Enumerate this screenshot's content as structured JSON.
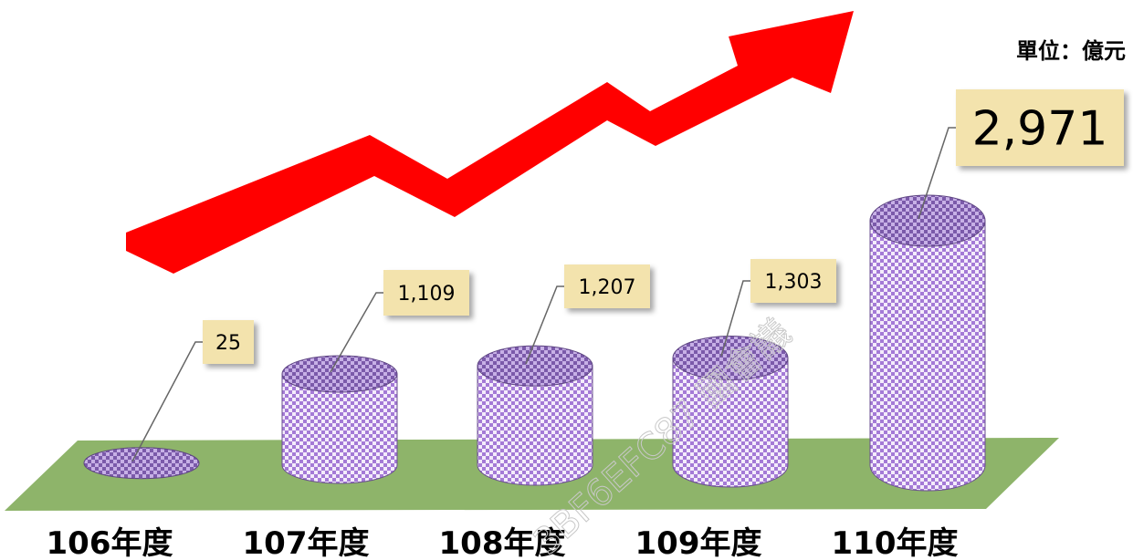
{
  "chart_data": {
    "type": "bar",
    "style": "3d-cylinder",
    "unit_label": "單位：億元",
    "categories": [
      "106年度",
      "107年度",
      "108年度",
      "109年度",
      "110年度"
    ],
    "values": [
      25,
      1109,
      1207,
      1303,
      2971
    ],
    "value_labels": [
      "25",
      "1,109",
      "1,207",
      "1,303",
      "2,971"
    ],
    "colors": {
      "bar": "#b68fe0",
      "bar_top": "#8f6cc0",
      "floor": "#8eb46a",
      "label_box": "#f3e3ad",
      "arrow": "#ff0000"
    },
    "trend_arrow": true,
    "watermark_text": "3BF6EFC87 國會議"
  }
}
